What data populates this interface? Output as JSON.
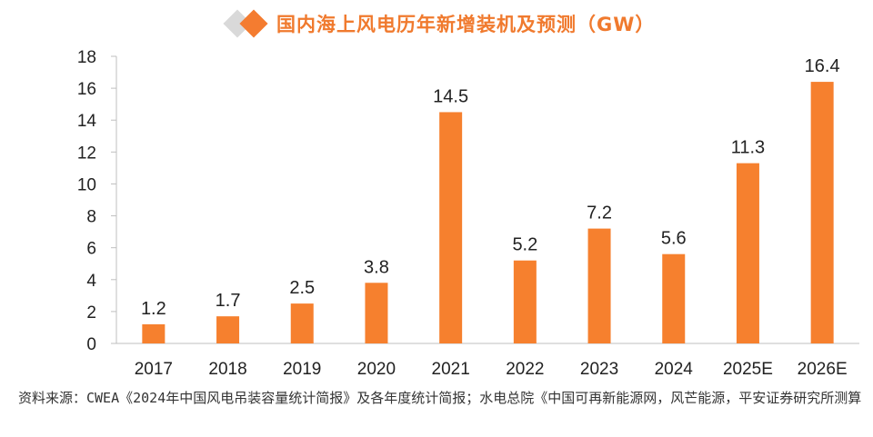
{
  "colors": {
    "bar": "#f6802e",
    "title": "#f07a2e",
    "diamond_gray": "#d9d9d9",
    "diamond_orange": "#f47c30"
  },
  "icons": [
    "diamond-icon",
    "diamond-icon"
  ],
  "chart_data": {
    "type": "bar",
    "title": "国内海上风电历年新增装机及预测（GW）",
    "categories": [
      "2017",
      "2018",
      "2019",
      "2020",
      "2021",
      "2022",
      "2023",
      "2024",
      "2025E",
      "2026E"
    ],
    "values": [
      1.2,
      1.7,
      2.5,
      3.8,
      14.5,
      5.2,
      7.2,
      5.6,
      11.3,
      16.4
    ],
    "value_labels": [
      "1.2",
      "1.7",
      "2.5",
      "3.8",
      "14.5",
      "5.2",
      "7.2",
      "5.6",
      "11.3",
      "16.4"
    ],
    "yticks": [
      "0",
      "2",
      "4",
      "6",
      "8",
      "10",
      "12",
      "14",
      "16",
      "18"
    ],
    "ylim": [
      0,
      18
    ],
    "xlabel": "",
    "ylabel": "",
    "grid": false,
    "legend": "none"
  },
  "source_text": "资料来源：CWEA《2024年中国风电吊装容量统计简报》及各年度统计简报；水电总院《中国可再新能源网，风芒能源，平安证券研究所测算"
}
